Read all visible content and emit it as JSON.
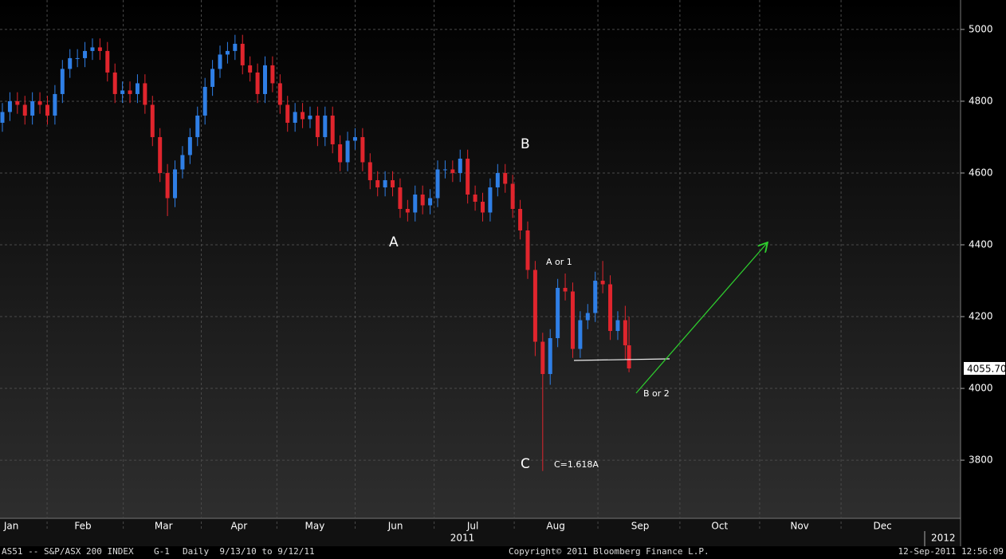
{
  "chart_data": {
    "type": "candlestick",
    "x": [
      0,
      2,
      4,
      6,
      8,
      10,
      12,
      14,
      16,
      18,
      20,
      22,
      24,
      26,
      28,
      30,
      32,
      34,
      36,
      38,
      40,
      42,
      44,
      46,
      48,
      50,
      52,
      54,
      56,
      58,
      60,
      62,
      64,
      66,
      68,
      70,
      72,
      74,
      76,
      78,
      80,
      82,
      84,
      86,
      88,
      90,
      92,
      94,
      96,
      98,
      100,
      102,
      104,
      106,
      108,
      110,
      112,
      114,
      116,
      118,
      120,
      122,
      124,
      126,
      128,
      130,
      132,
      134,
      136,
      138,
      140,
      142,
      144,
      146,
      148,
      150,
      152,
      154,
      156,
      158,
      160,
      162,
      164,
      166,
      167
    ],
    "open": [
      4740,
      4770,
      4800,
      4790,
      4760,
      4800,
      4790,
      4760,
      4820,
      4890,
      4920,
      4920,
      4940,
      4950,
      4940,
      4880,
      4820,
      4830,
      4820,
      4850,
      4790,
      4700,
      4600,
      4530,
      4610,
      4650,
      4700,
      4760,
      4840,
      4890,
      4930,
      4940,
      4960,
      4900,
      4880,
      4820,
      4900,
      4850,
      4790,
      4740,
      4770,
      4750,
      4760,
      4700,
      4760,
      4680,
      4630,
      4690,
      4700,
      4630,
      4580,
      4560,
      4580,
      4560,
      4500,
      4490,
      4540,
      4510,
      4530,
      4610,
      4610,
      4600,
      4640,
      4540,
      4520,
      4490,
      4560,
      4600,
      4570,
      4500,
      4440,
      4330,
      4130,
      4040,
      4140,
      4280,
      4270,
      4110,
      4190,
      4210,
      4300,
      4290,
      4160,
      4190,
      4120
    ],
    "high": [
      4795,
      4825,
      4825,
      4815,
      4825,
      4825,
      4815,
      4845,
      4915,
      4945,
      4945,
      4965,
      4975,
      4975,
      4965,
      4905,
      4855,
      4855,
      4875,
      4875,
      4815,
      4725,
      4625,
      4635,
      4675,
      4725,
      4785,
      4865,
      4915,
      4955,
      4965,
      4985,
      4985,
      4925,
      4905,
      4925,
      4925,
      4875,
      4815,
      4795,
      4795,
      4785,
      4785,
      4785,
      4785,
      4705,
      4715,
      4725,
      4725,
      4655,
      4605,
      4605,
      4605,
      4585,
      4525,
      4565,
      4565,
      4555,
      4635,
      4635,
      4635,
      4665,
      4665,
      4565,
      4545,
      4585,
      4625,
      4625,
      4595,
      4525,
      4465,
      4355,
      4155,
      4165,
      4305,
      4320,
      4295,
      4215,
      4235,
      4325,
      4355,
      4315,
      4215,
      4230,
      4200
    ],
    "low": [
      4715,
      4745,
      4765,
      4735,
      4735,
      4765,
      4735,
      4735,
      4795,
      4865,
      4895,
      4895,
      4915,
      4915,
      4855,
      4795,
      4795,
      4795,
      4795,
      4765,
      4675,
      4575,
      4480,
      4505,
      4585,
      4625,
      4675,
      4735,
      4815,
      4865,
      4905,
      4915,
      4875,
      4855,
      4795,
      4795,
      4825,
      4765,
      4715,
      4715,
      4725,
      4725,
      4675,
      4675,
      4655,
      4605,
      4605,
      4665,
      4605,
      4555,
      4535,
      4535,
      4535,
      4475,
      4465,
      4465,
      4485,
      4485,
      4505,
      4585,
      4575,
      4575,
      4515,
      4495,
      4465,
      4465,
      4535,
      4545,
      4475,
      4415,
      4305,
      4090,
      3770,
      4010,
      4115,
      4245,
      4085,
      4085,
      4165,
      4185,
      4265,
      4135,
      4135,
      4080,
      4045
    ],
    "close": [
      4770,
      4800,
      4790,
      4760,
      4800,
      4790,
      4760,
      4820,
      4890,
      4920,
      4920,
      4940,
      4950,
      4940,
      4880,
      4820,
      4830,
      4820,
      4850,
      4790,
      4700,
      4600,
      4530,
      4610,
      4650,
      4700,
      4760,
      4840,
      4890,
      4930,
      4940,
      4960,
      4900,
      4880,
      4820,
      4900,
      4850,
      4790,
      4740,
      4770,
      4750,
      4760,
      4700,
      4760,
      4680,
      4630,
      4690,
      4700,
      4630,
      4580,
      4560,
      4580,
      4560,
      4500,
      4490,
      4540,
      4510,
      4530,
      4610,
      4610,
      4600,
      4640,
      4540,
      4520,
      4490,
      4560,
      4600,
      4570,
      4500,
      4440,
      4330,
      4130,
      4040,
      4140,
      4280,
      4270,
      4110,
      4190,
      4210,
      4300,
      4290,
      4160,
      4190,
      4120,
      4055.7
    ],
    "up_color": "#2f7fe6",
    "down_color": "#e0252d",
    "last_price_label": "4055.70",
    "xlim": [
      0,
      256
    ],
    "xticks": [
      {
        "value": 3,
        "label": "Jan"
      },
      {
        "value": 22.1,
        "label": "Feb"
      },
      {
        "value": 43.6,
        "label": "Mar"
      },
      {
        "value": 63.7,
        "label": "Apr"
      },
      {
        "value": 83.9,
        "label": "May"
      },
      {
        "value": 105.4,
        "label": "Jun"
      },
      {
        "value": 126,
        "label": "Jul"
      },
      {
        "value": 148.1,
        "label": "Aug"
      },
      {
        "value": 170.6,
        "label": "Sep"
      },
      {
        "value": 191.8,
        "label": "Oct"
      },
      {
        "value": 213.1,
        "label": "Nov"
      },
      {
        "value": 235.2,
        "label": "Dec"
      }
    ],
    "year_labels": [
      "2011",
      "2012"
    ],
    "ylim": [
      3638,
      5082
    ],
    "yticks": [
      3800,
      4000,
      4200,
      4400,
      4600,
      4800,
      5000
    ],
    "grid": true,
    "annotations": [
      "B",
      "A",
      "C",
      "A or 1",
      "B or 2",
      "C=1.618A"
    ],
    "footer": {
      "security": "AS51 -- S&P/ASX 200 INDEX",
      "page": "G-1",
      "range": "Daily  9/13/10 to 9/12/11",
      "copyright": "Copyright© 2011 Bloomberg Finance L.P.",
      "timestamp": "12-Sep-2011 12:56:09"
    }
  }
}
